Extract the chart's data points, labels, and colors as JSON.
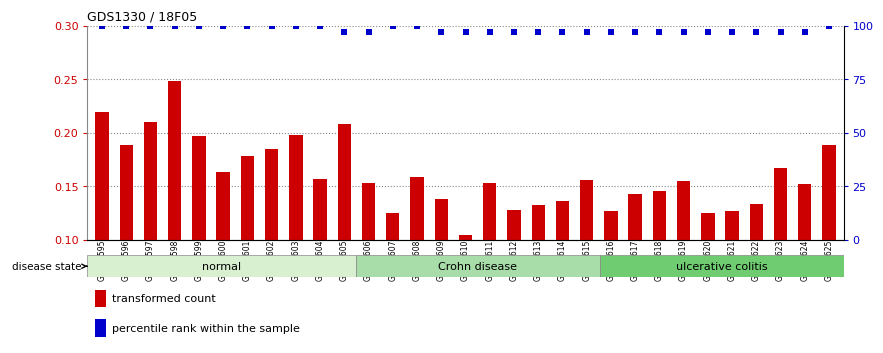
{
  "title": "GDS1330 / 18F05",
  "samples": [
    "GSM29595",
    "GSM29596",
    "GSM29597",
    "GSM29598",
    "GSM29599",
    "GSM29600",
    "GSM29601",
    "GSM29602",
    "GSM29603",
    "GSM29604",
    "GSM29605",
    "GSM29606",
    "GSM29607",
    "GSM29608",
    "GSM29609",
    "GSM29610",
    "GSM29611",
    "GSM29612",
    "GSM29613",
    "GSM29614",
    "GSM29615",
    "GSM29616",
    "GSM29617",
    "GSM29618",
    "GSM29619",
    "GSM29620",
    "GSM29621",
    "GSM29622",
    "GSM29623",
    "GSM29624",
    "GSM29625"
  ],
  "bar_values": [
    0.219,
    0.188,
    0.21,
    0.248,
    0.197,
    0.163,
    0.178,
    0.185,
    0.198,
    0.157,
    0.208,
    0.153,
    0.125,
    0.158,
    0.138,
    0.104,
    0.153,
    0.128,
    0.132,
    0.136,
    0.156,
    0.127,
    0.143,
    0.145,
    0.155,
    0.125,
    0.127,
    0.133,
    0.167,
    0.152,
    0.188
  ],
  "percentile_values": [
    100,
    100,
    100,
    100,
    100,
    100,
    100,
    100,
    100,
    100,
    97,
    97,
    100,
    100,
    97,
    97,
    97,
    97,
    97,
    97,
    97,
    97,
    97,
    97,
    97,
    97,
    97,
    97,
    97,
    97,
    100
  ],
  "bar_color": "#cc0000",
  "percentile_color": "#0000cc",
  "ylim_left": [
    0.1,
    0.3
  ],
  "ylim_right": [
    0,
    100
  ],
  "yticks_left": [
    0.1,
    0.15,
    0.2,
    0.25,
    0.3
  ],
  "yticks_right": [
    0,
    25,
    50,
    75,
    100
  ],
  "groups": [
    {
      "label": "normal",
      "start": 0,
      "end": 10,
      "color": "#d8f0d0"
    },
    {
      "label": "Crohn disease",
      "start": 11,
      "end": 20,
      "color": "#a8dca8"
    },
    {
      "label": "ulcerative colitis",
      "start": 21,
      "end": 30,
      "color": "#70cc70"
    }
  ],
  "disease_state_label": "disease state",
  "legend_bar_label": "transformed count",
  "legend_pct_label": "percentile rank within the sample",
  "background_color": "#ffffff",
  "xtick_bg": "#c8c8c8",
  "pct_display_value": 0.295
}
